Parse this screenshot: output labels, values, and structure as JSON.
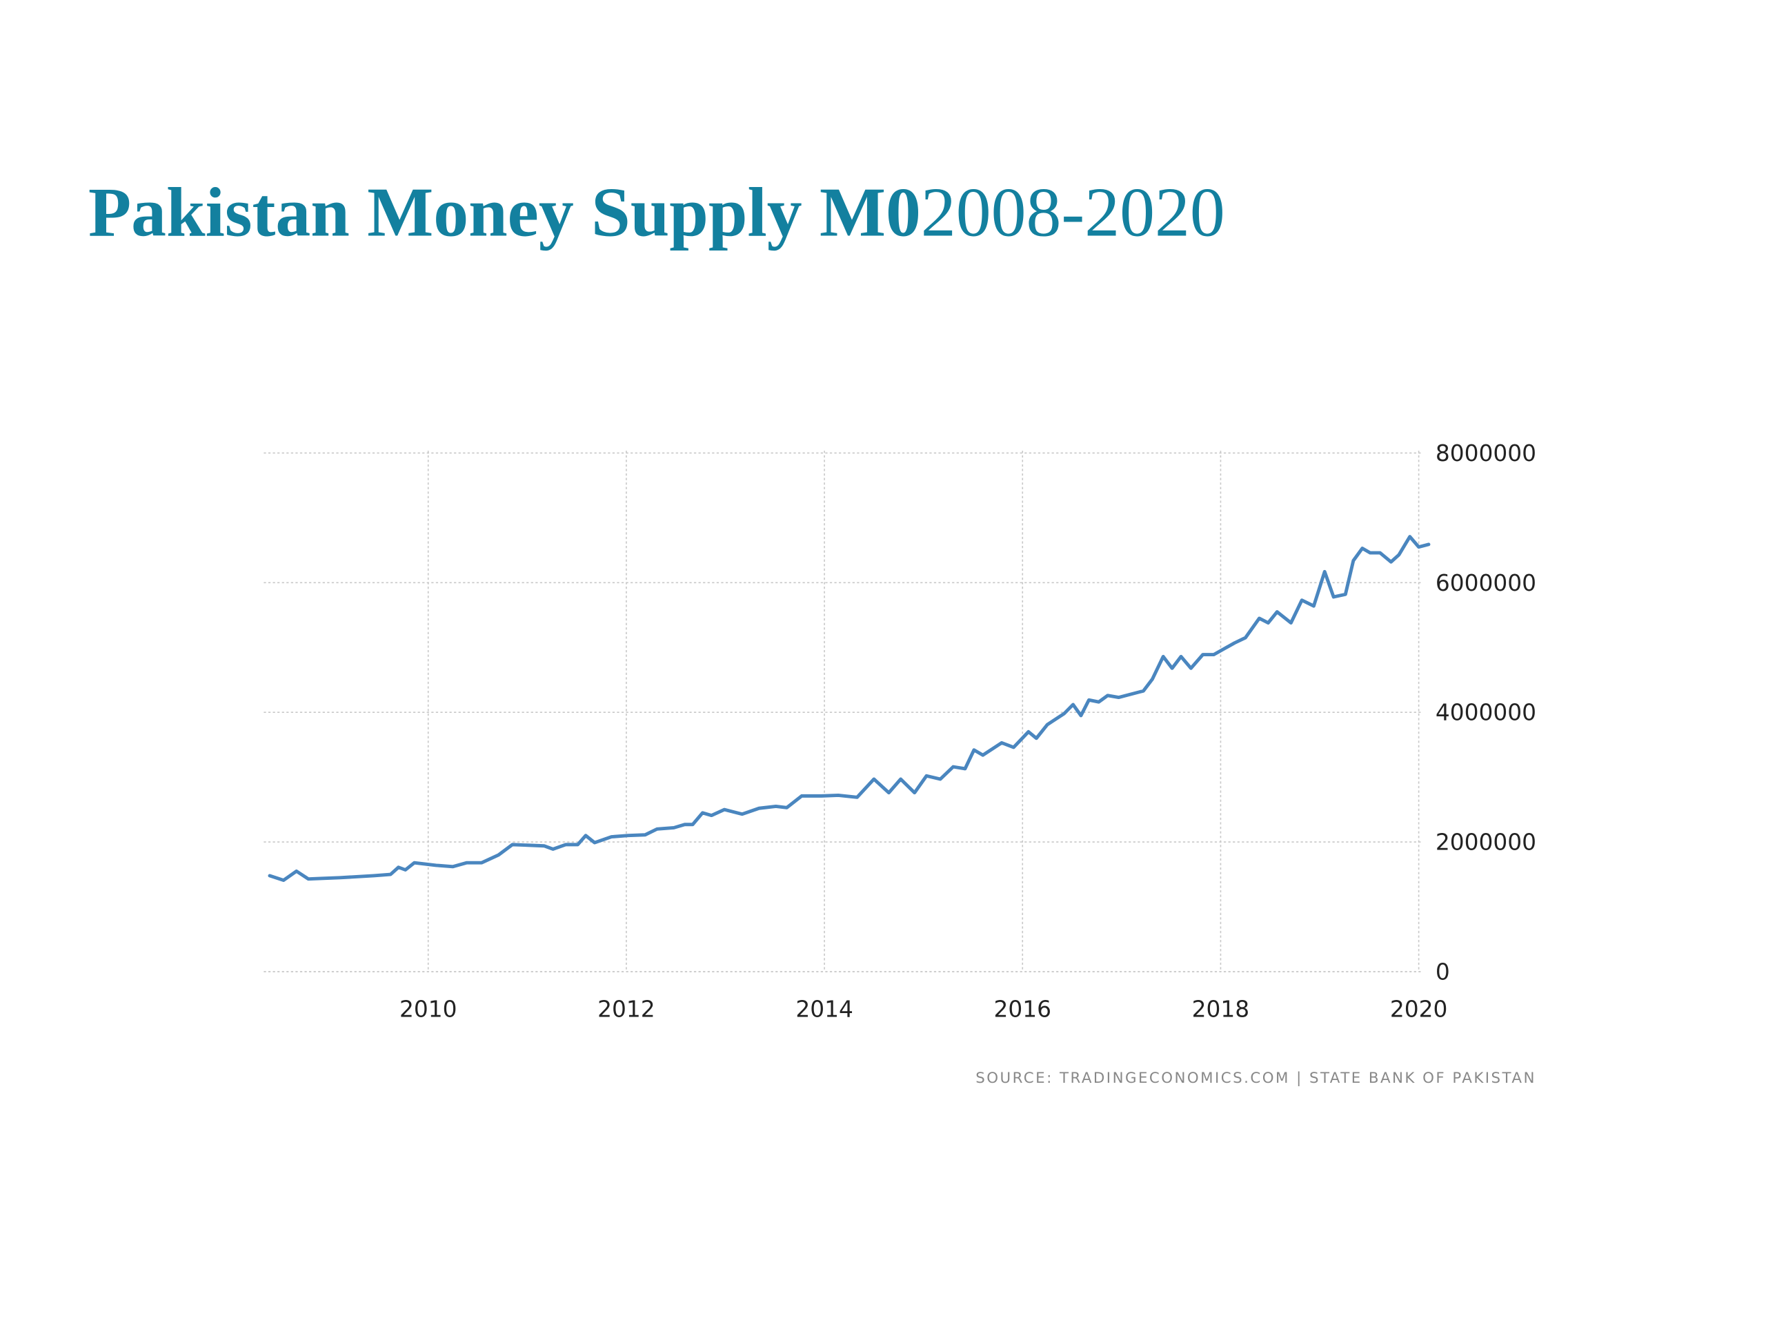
{
  "chart_data": {
    "type": "line",
    "title": "Pakistan Money Supply M0",
    "title_suffix": "2008-2020",
    "source": "SOURCE: TRADINGECONOMICS.COM | STATE BANK OF PAKISTAN",
    "x": [
      2008.4,
      2008.54,
      2008.67,
      2008.79,
      2009.11,
      2009.45,
      2009.62,
      2009.7,
      2009.77,
      2009.86,
      2010.08,
      2010.25,
      2010.39,
      2010.54,
      2010.71,
      2010.85,
      2011.17,
      2011.26,
      2011.39,
      2011.51,
      2011.59,
      2011.68,
      2011.85,
      2012.02,
      2012.19,
      2012.31,
      2012.48,
      2012.59,
      2012.67,
      2012.77,
      2012.86,
      2012.99,
      2013.17,
      2013.34,
      2013.51,
      2013.62,
      2013.77,
      2013.97,
      2014.14,
      2014.33,
      2014.5,
      2014.65,
      2014.77,
      2014.91,
      2015.03,
      2015.17,
      2015.3,
      2015.42,
      2015.51,
      2015.6,
      2015.79,
      2015.91,
      2016.06,
      2016.14,
      2016.25,
      2016.42,
      2016.51,
      2016.59,
      2016.67,
      2016.77,
      2016.86,
      2016.97,
      2017.22,
      2017.31,
      2017.42,
      2017.51,
      2017.6,
      2017.7,
      2017.82,
      2017.93,
      2018.14,
      2018.25,
      2018.39,
      2018.48,
      2018.57,
      2018.71,
      2018.82,
      2018.94,
      2019.05,
      2019.14,
      2019.26,
      2019.34,
      2019.43,
      2019.51,
      2019.61,
      2019.72,
      2019.8,
      2019.91,
      2020.0,
      2020.1
    ],
    "values": [
      1480000,
      1410000,
      1550000,
      1430000,
      1450000,
      1480000,
      1500000,
      1610000,
      1570000,
      1680000,
      1640000,
      1620000,
      1680000,
      1680000,
      1800000,
      1960000,
      1940000,
      1890000,
      1960000,
      1960000,
      2100000,
      1990000,
      2080000,
      2100000,
      2110000,
      2200000,
      2220000,
      2270000,
      2270000,
      2450000,
      2410000,
      2500000,
      2430000,
      2520000,
      2550000,
      2530000,
      2710000,
      2710000,
      2720000,
      2690000,
      2970000,
      2760000,
      2970000,
      2760000,
      3020000,
      2970000,
      3160000,
      3130000,
      3420000,
      3340000,
      3530000,
      3460000,
      3700000,
      3600000,
      3810000,
      3980000,
      4120000,
      3950000,
      4190000,
      4160000,
      4260000,
      4230000,
      4330000,
      4510000,
      4860000,
      4680000,
      4860000,
      4680000,
      4890000,
      4890000,
      5070000,
      5150000,
      5450000,
      5380000,
      5550000,
      5380000,
      5730000,
      5640000,
      6170000,
      5780000,
      5820000,
      6340000,
      6530000,
      6460000,
      6460000,
      6320000,
      6430000,
      6710000,
      6550000,
      6590000
    ],
    "color": "#4a86bf",
    "xlim": [
      2008.34,
      2020.02
    ],
    "xticks": [
      2010,
      2012,
      2014,
      2016,
      2018,
      2020
    ],
    "ylim": [
      0,
      8000000
    ],
    "yticks": [
      0,
      2000000,
      4000000,
      6000000,
      8000000
    ],
    "grid": true
  }
}
